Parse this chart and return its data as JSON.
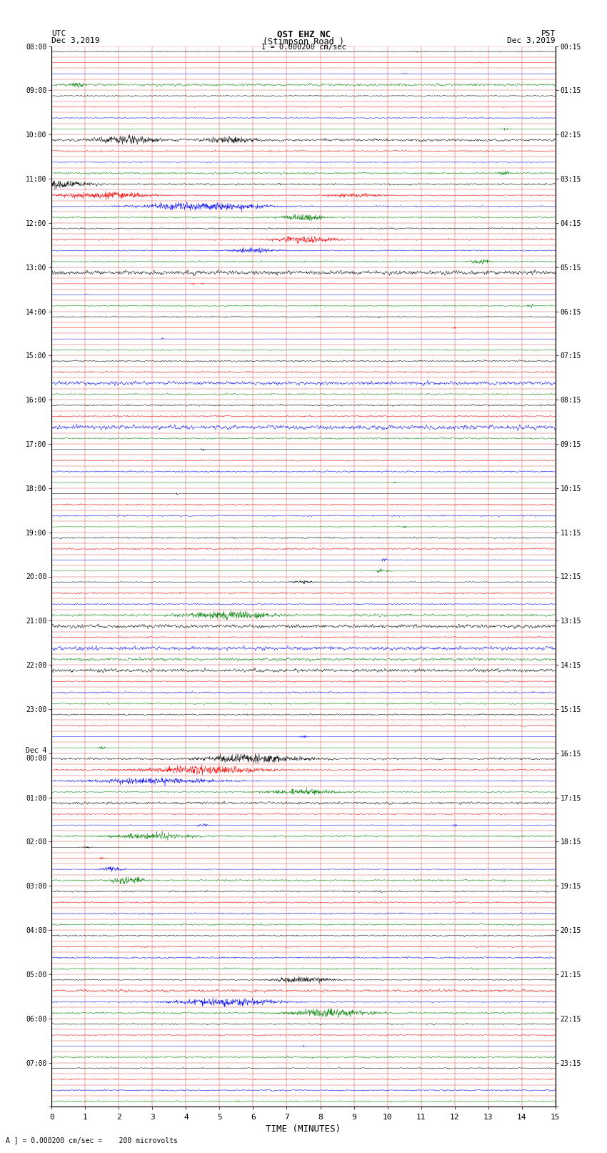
{
  "title_line1": "OST EHZ NC",
  "title_line2": "(Stimpson Road )",
  "title_line3": "I = 0.000200 cm/sec",
  "left_label_top": "UTC",
  "left_label_date": "Dec 3,2019",
  "right_label_top": "PST",
  "right_label_date": "Dec 3,2019",
  "xlabel": "TIME (MINUTES)",
  "footer": "A ] = 0.000200 cm/sec =    200 microvolts",
  "utc_times": [
    "08:00",
    "09:00",
    "10:00",
    "11:00",
    "12:00",
    "13:00",
    "14:00",
    "15:00",
    "16:00",
    "17:00",
    "18:00",
    "19:00",
    "20:00",
    "21:00",
    "22:00",
    "23:00",
    "Dec 4\n00:00",
    "01:00",
    "02:00",
    "03:00",
    "04:00",
    "05:00",
    "06:00",
    "07:00",
    ""
  ],
  "pst_times": [
    "00:15",
    "01:15",
    "02:15",
    "03:15",
    "04:15",
    "05:15",
    "06:15",
    "07:15",
    "08:15",
    "09:15",
    "10:15",
    "11:15",
    "12:15",
    "13:15",
    "14:15",
    "15:15",
    "16:15",
    "17:15",
    "18:15",
    "19:15",
    "20:15",
    "21:15",
    "22:15",
    "23:15",
    ""
  ],
  "n_hours": 24,
  "n_minutes": 15,
  "bg_color": "#ffffff",
  "grid_color": "#cc0000",
  "colors_cycle": [
    "black",
    "red",
    "blue",
    "green"
  ],
  "rows_per_hour": 4,
  "n_pts": 1800
}
